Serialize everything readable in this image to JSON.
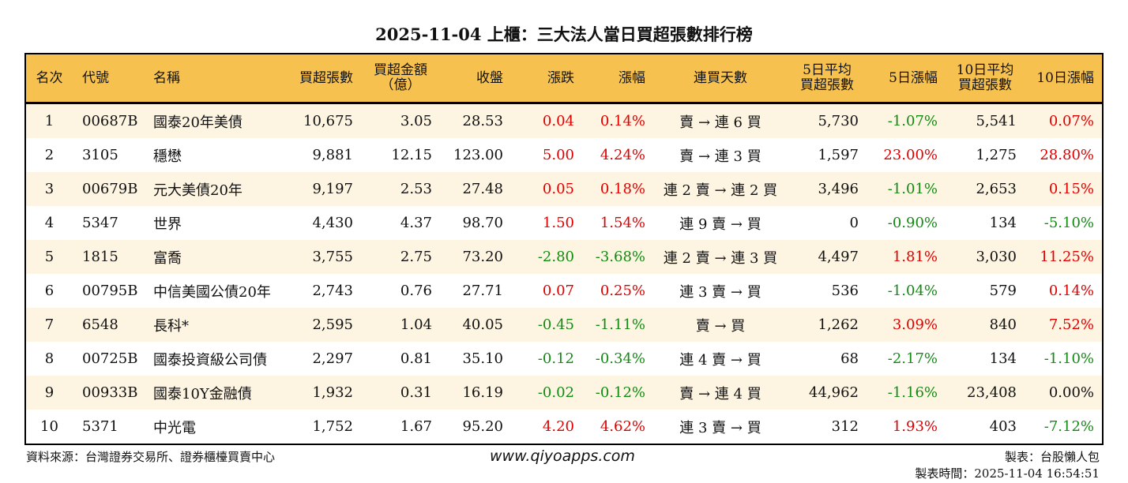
{
  "title": "2025-11-04 上櫃：三大法人當日買超張數排行榜",
  "colors": {
    "header_bg": "#f6c14f",
    "up": "#e00000",
    "down": "#138a13",
    "row_alt": "#fdf4e1"
  },
  "headers": [
    "名次",
    "代號",
    "名稱",
    "買超張數",
    "買超金額\n（億）",
    "收盤",
    "漲跌",
    "漲幅",
    "連買天數",
    "5日平均\n買超張數",
    "5日漲幅",
    "10日平均\n買超張數",
    "10日漲幅"
  ],
  "rows": [
    {
      "rank": "1",
      "code": "00687B",
      "name": "國泰20年美債",
      "net_buy": "10,675",
      "amount": "3.05",
      "close": "28.53",
      "change": "0.04",
      "change_pct": "0.14%",
      "dir": "up",
      "streak": "賣 → 連 6 買",
      "avg5": "5,730",
      "pct5": "-1.07%",
      "dir5": "down",
      "avg10": "5,541",
      "pct10": "0.07%",
      "dir10": "up"
    },
    {
      "rank": "2",
      "code": "3105",
      "name": "穩懋",
      "net_buy": "9,881",
      "amount": "12.15",
      "close": "123.00",
      "change": "5.00",
      "change_pct": "4.24%",
      "dir": "up",
      "streak": "賣 → 連 3 買",
      "avg5": "1,597",
      "pct5": "23.00%",
      "dir5": "up",
      "avg10": "1,275",
      "pct10": "28.80%",
      "dir10": "up"
    },
    {
      "rank": "3",
      "code": "00679B",
      "name": "元大美債20年",
      "net_buy": "9,197",
      "amount": "2.53",
      "close": "27.48",
      "change": "0.05",
      "change_pct": "0.18%",
      "dir": "up",
      "streak": "連 2 賣 → 連 2 買",
      "avg5": "3,496",
      "pct5": "-1.01%",
      "dir5": "down",
      "avg10": "2,653",
      "pct10": "0.15%",
      "dir10": "up"
    },
    {
      "rank": "4",
      "code": "5347",
      "name": "世界",
      "net_buy": "4,430",
      "amount": "4.37",
      "close": "98.70",
      "change": "1.50",
      "change_pct": "1.54%",
      "dir": "up",
      "streak": "連 9 賣 → 買",
      "avg5": "0",
      "pct5": "-0.90%",
      "dir5": "down",
      "avg10": "134",
      "pct10": "-5.10%",
      "dir10": "down"
    },
    {
      "rank": "5",
      "code": "1815",
      "name": "富喬",
      "net_buy": "3,755",
      "amount": "2.75",
      "close": "73.20",
      "change": "-2.80",
      "change_pct": "-3.68%",
      "dir": "down",
      "streak": "連 2 賣 → 連 3 買",
      "avg5": "4,497",
      "pct5": "1.81%",
      "dir5": "up",
      "avg10": "3,030",
      "pct10": "11.25%",
      "dir10": "up"
    },
    {
      "rank": "6",
      "code": "00795B",
      "name": "中信美國公債20年",
      "net_buy": "2,743",
      "amount": "0.76",
      "close": "27.71",
      "change": "0.07",
      "change_pct": "0.25%",
      "dir": "up",
      "streak": "連 3 賣 → 買",
      "avg5": "536",
      "pct5": "-1.04%",
      "dir5": "down",
      "avg10": "579",
      "pct10": "0.14%",
      "dir10": "up"
    },
    {
      "rank": "7",
      "code": "6548",
      "name": "長科*",
      "net_buy": "2,595",
      "amount": "1.04",
      "close": "40.05",
      "change": "-0.45",
      "change_pct": "-1.11%",
      "dir": "down",
      "streak": "賣 → 買",
      "avg5": "1,262",
      "pct5": "3.09%",
      "dir5": "up",
      "avg10": "840",
      "pct10": "7.52%",
      "dir10": "up"
    },
    {
      "rank": "8",
      "code": "00725B",
      "name": "國泰投資級公司債",
      "net_buy": "2,297",
      "amount": "0.81",
      "close": "35.10",
      "change": "-0.12",
      "change_pct": "-0.34%",
      "dir": "down",
      "streak": "連 4 賣 → 買",
      "avg5": "68",
      "pct5": "-2.17%",
      "dir5": "down",
      "avg10": "134",
      "pct10": "-1.10%",
      "dir10": "down"
    },
    {
      "rank": "9",
      "code": "00933B",
      "name": "國泰10Y金融債",
      "net_buy": "1,932",
      "amount": "0.31",
      "close": "16.19",
      "change": "-0.02",
      "change_pct": "-0.12%",
      "dir": "down",
      "streak": "賣 → 連 4 買",
      "avg5": "44,962",
      "pct5": "-1.16%",
      "dir5": "down",
      "avg10": "23,408",
      "pct10": "0.00%",
      "dir10": "flat"
    },
    {
      "rank": "10",
      "code": "5371",
      "name": "中光電",
      "net_buy": "1,752",
      "amount": "1.67",
      "close": "95.20",
      "change": "4.20",
      "change_pct": "4.62%",
      "dir": "up",
      "streak": "連 3 賣 → 買",
      "avg5": "312",
      "pct5": "1.93%",
      "dir5": "up",
      "avg10": "403",
      "pct10": "-7.12%",
      "dir10": "down"
    }
  ],
  "footer": {
    "source": "資料來源：台灣證券交易所、證券櫃檯買賣中心",
    "site": "www.qiyoapps.com",
    "maker": "製表：台股懶人包",
    "time": "製表時間：2025-11-04 16:54:51"
  }
}
